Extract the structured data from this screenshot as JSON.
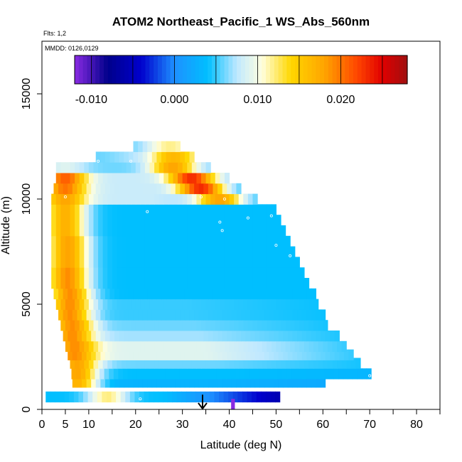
{
  "chart_data": {
    "type": "heatmap",
    "title": "ATOM2 Northeast_Pacific_1 WS_Abs_560nm",
    "flights_label": "Flts: 1,2",
    "dates_label": "MMDD: 0126,0129",
    "xlabel": "Latitude (deg N)",
    "ylabel": "Altitude (m)",
    "xlim": [
      0,
      85
    ],
    "ylim": [
      0,
      17500
    ],
    "x_ticks": [
      0,
      5,
      10,
      20,
      30,
      40,
      50,
      60,
      70,
      80
    ],
    "y_ticks": [
      0,
      5000,
      10000,
      15000
    ],
    "colorbar": {
      "min": -0.012,
      "max": 0.028,
      "tick_values": [
        -0.01,
        0.0,
        0.01,
        0.02
      ],
      "tick_labels": [
        "-0.010",
        "0.000",
        "0.010",
        "0.020"
      ],
      "stops": [
        {
          "v": -0.012,
          "color": "#8a2be2"
        },
        {
          "v": -0.008,
          "color": "#00008b"
        },
        {
          "v": -0.004,
          "color": "#0000cd"
        },
        {
          "v": 0.0,
          "color": "#1e90ff"
        },
        {
          "v": 0.004,
          "color": "#00bfff"
        },
        {
          "v": 0.0075,
          "color": "#bfe8ff"
        },
        {
          "v": 0.0105,
          "color": "#ffffe0"
        },
        {
          "v": 0.014,
          "color": "#ffd700"
        },
        {
          "v": 0.018,
          "color": "#ffa500"
        },
        {
          "v": 0.022,
          "color": "#ff4500"
        },
        {
          "v": 0.025,
          "color": "#e00000"
        },
        {
          "v": 0.028,
          "color": "#a01010"
        }
      ]
    },
    "bands": [
      {
        "alt": 600,
        "lat_min": 0.8,
        "lat_max": 50.5,
        "peak_lat": 14,
        "peak_value": 0.012,
        "base_value": 0.004,
        "end_value": -0.008
      },
      {
        "alt": 1300,
        "lat_min": 6.5,
        "lat_max": 60,
        "peak_lat": 7.5,
        "peak_value": 0.017,
        "base_value": 0.003,
        "end_value": 0.002
      },
      {
        "alt": 1700,
        "lat_min": 6.3,
        "lat_max": 70,
        "peak_lat": 7.5,
        "peak_value": 0.018,
        "base_value": 0.004,
        "end_value": 0.003
      },
      {
        "alt": 2200,
        "lat_min": 6.0,
        "lat_max": 68,
        "peak_lat": 7.5,
        "peak_value": 0.018,
        "base_value": 0.006,
        "end_value": 0.004
      },
      {
        "alt": 2600,
        "lat_min": 5.5,
        "lat_max": 66,
        "peak_lat": 7.0,
        "peak_value": 0.019,
        "base_value": 0.009,
        "end_value": 0.004
      },
      {
        "alt": 3000,
        "lat_min": 5.0,
        "lat_max": 65,
        "peak_lat": 7.0,
        "peak_value": 0.019,
        "base_value": 0.009,
        "end_value": 0.004
      },
      {
        "alt": 3500,
        "lat_min": 4.5,
        "lat_max": 63,
        "peak_lat": 6.5,
        "peak_value": 0.019,
        "base_value": 0.007,
        "end_value": 0.004
      },
      {
        "alt": 4000,
        "lat_min": 4.0,
        "lat_max": 61,
        "peak_lat": 6.5,
        "peak_value": 0.019,
        "base_value": 0.006,
        "end_value": 0.004
      },
      {
        "alt": 4500,
        "lat_min": 3.5,
        "lat_max": 60,
        "peak_lat": 6.0,
        "peak_value": 0.019,
        "base_value": 0.005,
        "end_value": 0.004
      },
      {
        "alt": 5000,
        "lat_min": 3.0,
        "lat_max": 59,
        "peak_lat": 6.0,
        "peak_value": 0.019,
        "base_value": 0.005,
        "end_value": 0.004
      },
      {
        "alt": 5500,
        "lat_min": 2.5,
        "lat_max": 58,
        "peak_lat": 6.0,
        "peak_value": 0.019,
        "base_value": 0.004,
        "end_value": 0.004
      },
      {
        "alt": 6000,
        "lat_min": 2.0,
        "lat_max": 57,
        "peak_lat": 5.5,
        "peak_value": 0.019,
        "base_value": 0.004,
        "end_value": 0.004
      },
      {
        "alt": 6500,
        "lat_min": 2.0,
        "lat_max": 56,
        "peak_lat": 5.5,
        "peak_value": 0.019,
        "base_value": 0.004,
        "end_value": 0.004
      },
      {
        "alt": 7000,
        "lat_min": 2.0,
        "lat_max": 55,
        "peak_lat": 5.5,
        "peak_value": 0.018,
        "base_value": 0.004,
        "end_value": 0.004
      },
      {
        "alt": 7500,
        "lat_min": 2.0,
        "lat_max": 54,
        "peak_lat": 5.5,
        "peak_value": 0.018,
        "base_value": 0.004,
        "end_value": 0.004
      },
      {
        "alt": 8000,
        "lat_min": 2.0,
        "lat_max": 53,
        "peak_lat": 5.5,
        "peak_value": 0.018,
        "base_value": 0.004,
        "end_value": 0.004
      },
      {
        "alt": 8500,
        "lat_min": 2.0,
        "lat_max": 52,
        "peak_lat": 5.0,
        "peak_value": 0.017,
        "base_value": 0.004,
        "end_value": 0.004
      },
      {
        "alt": 9000,
        "lat_min": 2.0,
        "lat_max": 51,
        "peak_lat": 5.0,
        "peak_value": 0.017,
        "base_value": 0.004,
        "end_value": 0.004
      },
      {
        "alt": 9500,
        "lat_min": 2.0,
        "lat_max": 50,
        "peak_lat": 5.0,
        "peak_value": 0.017,
        "base_value": 0.004,
        "end_value": 0.004
      },
      {
        "alt": 10000,
        "lat_min": 2.0,
        "lat_max": 45.5,
        "peak_lat": 5.0,
        "peak_value": 0.018,
        "base_value": 0.008,
        "end_value": 0.004,
        "hot_lat": 38,
        "hot_value": 0.02
      },
      {
        "alt": 10500,
        "lat_min": 2.5,
        "lat_max": 42.5,
        "peak_lat": 5.0,
        "peak_value": 0.02,
        "base_value": 0.008,
        "end_value": 0.004,
        "hot_lat": 34,
        "hot_value": 0.025
      },
      {
        "alt": 11000,
        "lat_min": 3.0,
        "lat_max": 40,
        "peak_lat": 5.0,
        "peak_value": 0.021,
        "base_value": 0.008,
        "end_value": 0.006,
        "hot_lat": 32,
        "hot_value": 0.024
      },
      {
        "alt": 11500,
        "lat_min": 3.0,
        "lat_max": 36,
        "peak_lat": 5.0,
        "peak_value": 0.009,
        "base_value": 0.006,
        "end_value": 0.006,
        "hot_lat": 28,
        "hot_value": 0.018
      },
      {
        "alt": 12000,
        "lat_min": 11.5,
        "lat_max": 32,
        "peak_lat": 12,
        "peak_value": 0.006,
        "base_value": 0.007,
        "end_value": 0.008,
        "hot_lat": 28,
        "hot_value": 0.016
      },
      {
        "alt": 12500,
        "lat_min": 19.5,
        "lat_max": 29,
        "peak_lat": 20,
        "peak_value": 0.006,
        "base_value": 0.008,
        "end_value": 0.008,
        "hot_lat": 27,
        "hot_value": 0.012
      }
    ],
    "flight_points": [
      {
        "lat": 1.5,
        "alt": 10700
      },
      {
        "lat": 5.0,
        "alt": 10100
      },
      {
        "lat": 12,
        "alt": 11800
      },
      {
        "lat": 19,
        "alt": 11800
      },
      {
        "lat": 22.5,
        "alt": 9400
      },
      {
        "lat": 34,
        "alt": 10100
      },
      {
        "lat": 39,
        "alt": 10000
      },
      {
        "lat": 38,
        "alt": 8900
      },
      {
        "lat": 38.5,
        "alt": 8500
      },
      {
        "lat": 44,
        "alt": 9100
      },
      {
        "lat": 49,
        "alt": 9200
      },
      {
        "lat": 50,
        "alt": 7800
      },
      {
        "lat": 53,
        "alt": 7300
      },
      {
        "lat": 70,
        "alt": 1600
      },
      {
        "lat": 21,
        "alt": 500
      }
    ],
    "marker": {
      "lat": 34.3,
      "alt_top": 700,
      "alt_bottom": 0
    },
    "purple_cell": {
      "lat": 40.8,
      "alt_bottom": 0,
      "alt_top": 500
    }
  }
}
